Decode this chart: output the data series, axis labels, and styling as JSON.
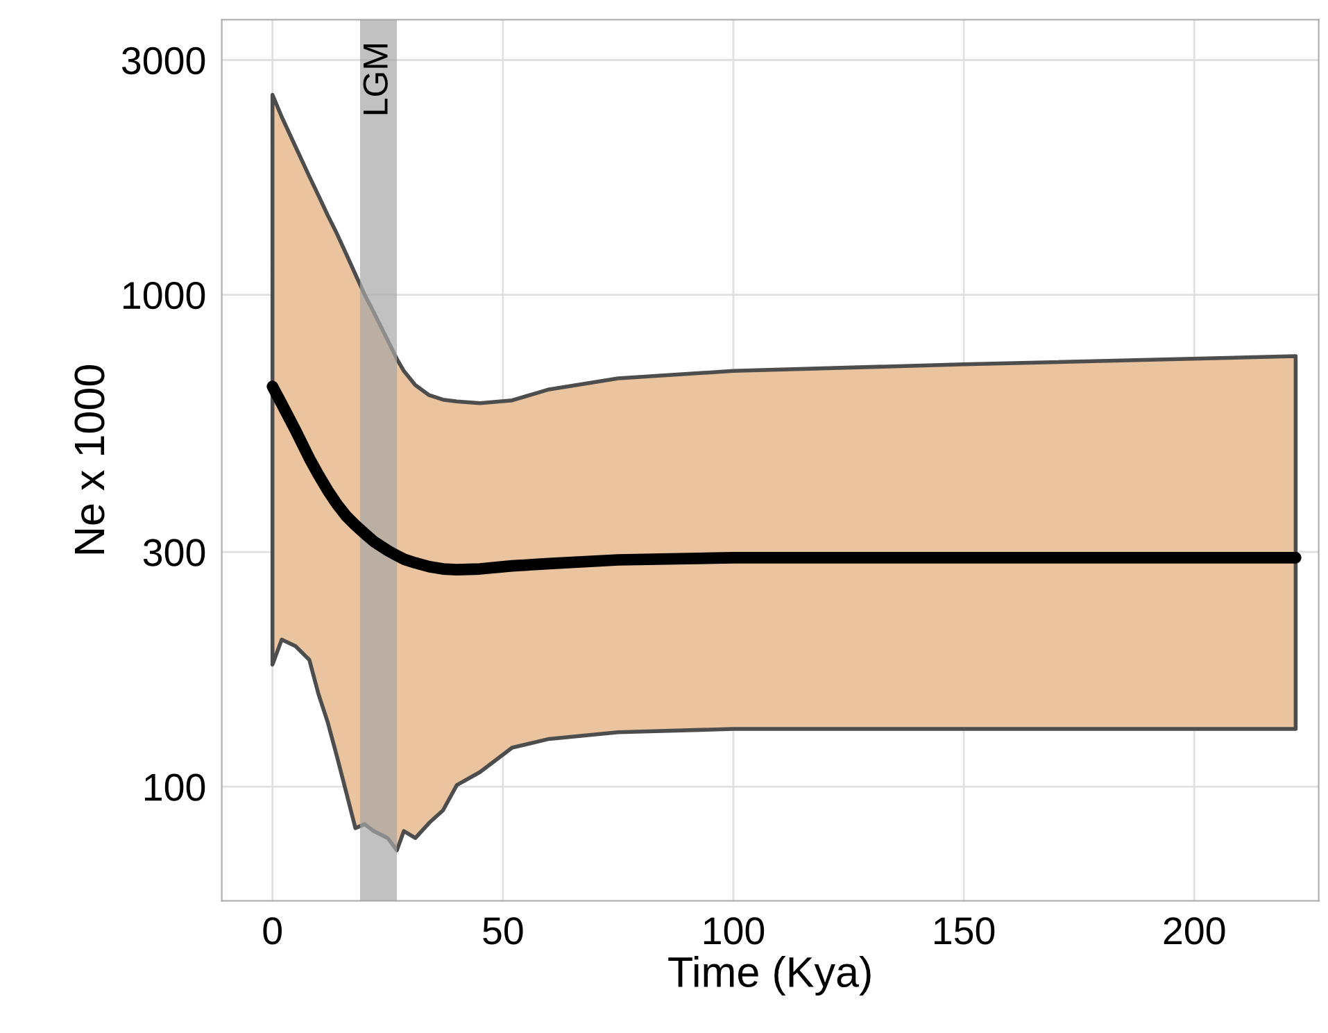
{
  "chart_data": {
    "type": "line",
    "xlabel": "Time (Kya)",
    "ylabel": "Ne x 1000",
    "log": "y",
    "xlim": [
      -11,
      227
    ],
    "ylim": [
      58.6,
      3625
    ],
    "xticks": [
      0,
      50,
      100,
      150,
      200
    ],
    "yticks": [
      100,
      300,
      1000,
      3000
    ],
    "grid": true,
    "marker": "none",
    "line_style": "solid",
    "bands": [
      {
        "axis": "x",
        "from": 19,
        "to": 27,
        "label": "LGM",
        "color": "#a6a6a6"
      }
    ],
    "series": [
      {
        "color": "#000000",
        "x": [
          0,
          2,
          5,
          8,
          10,
          12,
          14,
          16,
          18,
          20,
          22,
          25,
          27,
          28.5,
          31,
          34,
          37,
          40,
          45,
          52,
          60,
          75,
          100,
          150,
          222
        ],
        "values": [
          651,
          600,
          530,
          465,
          430,
          400,
          375,
          355,
          340,
          327,
          315,
          302,
          295,
          290,
          285,
          280,
          277,
          276,
          277,
          281,
          284,
          289,
          292,
          292,
          292
        ],
        "upper": [
          2550,
          2300,
          2000,
          1740,
          1590,
          1450,
          1330,
          1210,
          1100,
          1000,
          920,
          808,
          740,
          700,
          655,
          625,
          612,
          607,
          602,
          610,
          642,
          676,
          700,
          722,
          750
        ],
        "lower": [
          177,
          199,
          193,
          181,
          154,
          135,
          115,
          97.4,
          82.3,
          83.9,
          81.2,
          78.6,
          74.2,
          81.2,
          78.6,
          84.4,
          89.5,
          100.7,
          107,
          120,
          125,
          129,
          131,
          131,
          131
        ]
      }
    ]
  }
}
